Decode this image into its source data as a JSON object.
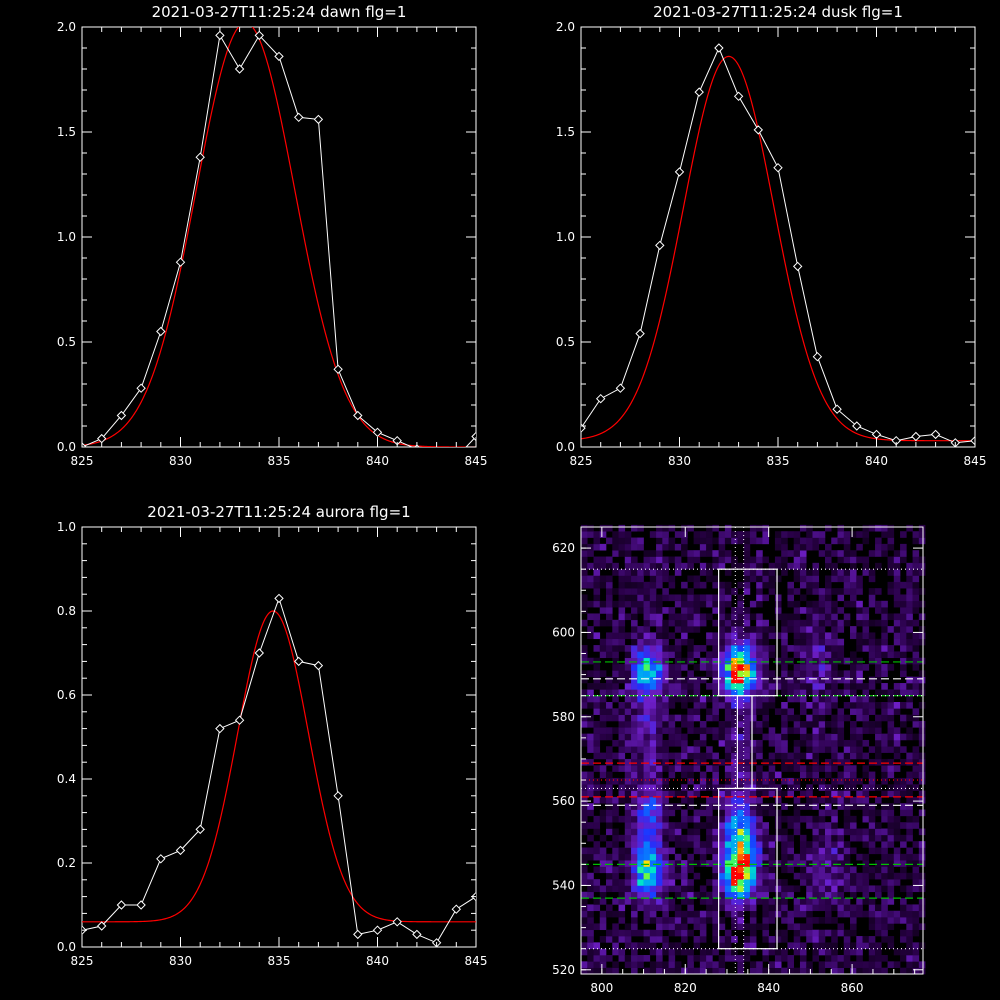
{
  "chart_data": [
    {
      "type": "line",
      "title": "2021-03-27T11:25:24 dawn flg=1",
      "xlim": [
        825,
        845
      ],
      "ylim": [
        0,
        2.0
      ],
      "xticks": [
        "825",
        "830",
        "835",
        "840",
        "845"
      ],
      "yticks": [
        "0.0",
        "0.5",
        "1.0",
        "1.5",
        "2.0"
      ],
      "x": [
        825,
        826,
        827,
        828,
        829,
        830,
        831,
        832,
        833,
        834,
        835,
        836,
        837,
        838,
        839,
        840,
        841,
        842,
        843,
        844,
        845
      ],
      "series": [
        {
          "values": [
            0.0,
            0.04,
            0.15,
            0.28,
            0.55,
            0.88,
            1.38,
            1.96,
            1.8,
            1.96,
            1.86,
            1.57,
            1.56,
            0.37,
            0.15,
            0.07,
            0.03,
            -0.01,
            -0.02,
            -0.05,
            0.05
          ],
          "color": "#ffffff",
          "marker": "diamond"
        },
        {
          "fit": {
            "amplitude": 2.02,
            "center": 833.3,
            "sigma": 2.5,
            "offset": 0.0
          },
          "color": "#ff0000"
        }
      ]
    },
    {
      "type": "line",
      "title": "2021-03-27T11:25:24 dusk flg=1",
      "xlim": [
        825,
        845
      ],
      "ylim": [
        0,
        2.0
      ],
      "xticks": [
        "825",
        "830",
        "835",
        "840",
        "845"
      ],
      "yticks": [
        "0.0",
        "0.5",
        "1.0",
        "1.5",
        "2.0"
      ],
      "x": [
        825,
        826,
        827,
        828,
        829,
        830,
        831,
        832,
        833,
        834,
        835,
        836,
        837,
        838,
        839,
        840,
        841,
        842,
        843,
        844,
        845
      ],
      "series": [
        {
          "values": [
            0.09,
            0.23,
            0.28,
            0.54,
            0.96,
            1.31,
            1.69,
            1.9,
            1.67,
            1.51,
            1.33,
            0.86,
            0.43,
            0.18,
            0.1,
            0.06,
            0.03,
            0.05,
            0.06,
            0.02,
            0.03
          ],
          "color": "#ffffff",
          "marker": "diamond"
        },
        {
          "fit": {
            "amplitude": 1.83,
            "center": 832.5,
            "sigma": 2.3,
            "offset": 0.03
          },
          "color": "#ff0000"
        }
      ]
    },
    {
      "type": "line",
      "title": "2021-03-27T11:25:24 aurora flg=1",
      "xlim": [
        825,
        845
      ],
      "ylim": [
        0,
        1.0
      ],
      "xticks": [
        "825",
        "830",
        "835",
        "840",
        "845"
      ],
      "yticks": [
        "0.0",
        "0.2",
        "0.4",
        "0.6",
        "0.8",
        "1.0"
      ],
      "x": [
        825,
        826,
        827,
        828,
        829,
        830,
        831,
        832,
        833,
        834,
        835,
        836,
        837,
        838,
        839,
        840,
        841,
        842,
        843,
        844,
        845
      ],
      "series": [
        {
          "values": [
            0.04,
            0.05,
            0.1,
            0.1,
            0.21,
            0.23,
            0.28,
            0.52,
            0.54,
            0.7,
            0.83,
            0.68,
            0.67,
            0.36,
            0.03,
            0.04,
            0.06,
            0.03,
            0.01,
            0.09,
            0.12
          ],
          "color": "#ffffff",
          "marker": "diamond"
        },
        {
          "fit": {
            "amplitude": 0.74,
            "center": 834.7,
            "sigma": 1.8,
            "offset": 0.06
          },
          "color": "#ff0000"
        }
      ]
    },
    {
      "type": "heatmap",
      "xlim": [
        795,
        877
      ],
      "ylim": [
        519,
        625
      ],
      "xticks": [
        800,
        820,
        840,
        860
      ],
      "yticks": [
        520,
        540,
        560,
        580,
        600,
        620
      ],
      "sources": [
        {
          "x": 833,
          "y": 591,
          "amp": 1.0,
          "sx": 2.5,
          "sy": 4
        },
        {
          "x": 833,
          "y": 543,
          "amp": 1.0,
          "sx": 2.5,
          "sy": 4
        },
        {
          "x": 833,
          "y": 552,
          "amp": 0.55,
          "sx": 2.5,
          "sy": 5
        },
        {
          "x": 811,
          "y": 591,
          "amp": 0.55,
          "sx": 2.5,
          "sy": 4
        },
        {
          "x": 811,
          "y": 543,
          "amp": 0.6,
          "sx": 2.5,
          "sy": 4
        },
        {
          "x": 811,
          "y": 556,
          "amp": 0.3,
          "sx": 2.5,
          "sy": 6
        },
        {
          "x": 811,
          "y": 578,
          "amp": 0.15,
          "sx": 2.5,
          "sy": 6
        },
        {
          "x": 833,
          "y": 572,
          "amp": 0.1,
          "sx": 2.0,
          "sy": 10
        },
        {
          "x": 852,
          "y": 592,
          "amp": 0.1,
          "sx": 3,
          "sy": 8
        },
        {
          "x": 855,
          "y": 545,
          "amp": 0.09,
          "sx": 3,
          "sy": 8
        }
      ],
      "boxes": [
        {
          "x0": 828,
          "x1": 842,
          "y0": 585,
          "y1": 615
        },
        {
          "x0": 828,
          "x1": 842,
          "y0": 525,
          "y1": 563
        },
        {
          "x0": 832.5,
          "x1": 836,
          "y0": 563,
          "y1": 585
        }
      ],
      "hlines": [
        {
          "y": 615,
          "color": "#ffffff",
          "dash": "1,3"
        },
        {
          "y": 525,
          "color": "#ffffff",
          "dash": "1,3"
        },
        {
          "y": 593,
          "color": "#00c000",
          "dash": "8,4"
        },
        {
          "y": 589,
          "color": "#ffffff",
          "dash": "8,4"
        },
        {
          "y": 585,
          "color": "#00c000",
          "dash": "8,4"
        },
        {
          "y": 585,
          "color": "#ffffff",
          "dash": "1,3"
        },
        {
          "y": 569,
          "color": "#ff0000",
          "dash": "8,4"
        },
        {
          "y": 565,
          "color": "#ff0000",
          "dash": "1,3"
        },
        {
          "y": 561,
          "color": "#ff0000",
          "dash": "8,4"
        },
        {
          "y": 563,
          "color": "#ffffff",
          "dash": "1,3"
        },
        {
          "y": 559,
          "color": "#ffffff",
          "dash": "8,4"
        },
        {
          "y": 545,
          "color": "#00c000",
          "dash": "8,4"
        },
        {
          "y": 537,
          "color": "#00c000",
          "dash": "8,4"
        }
      ],
      "vlines": [
        {
          "x": 832,
          "color": "#ffffff",
          "dash": "1,3"
        },
        {
          "x": 834,
          "color": "#ffffff",
          "dash": "1,3"
        }
      ]
    }
  ]
}
